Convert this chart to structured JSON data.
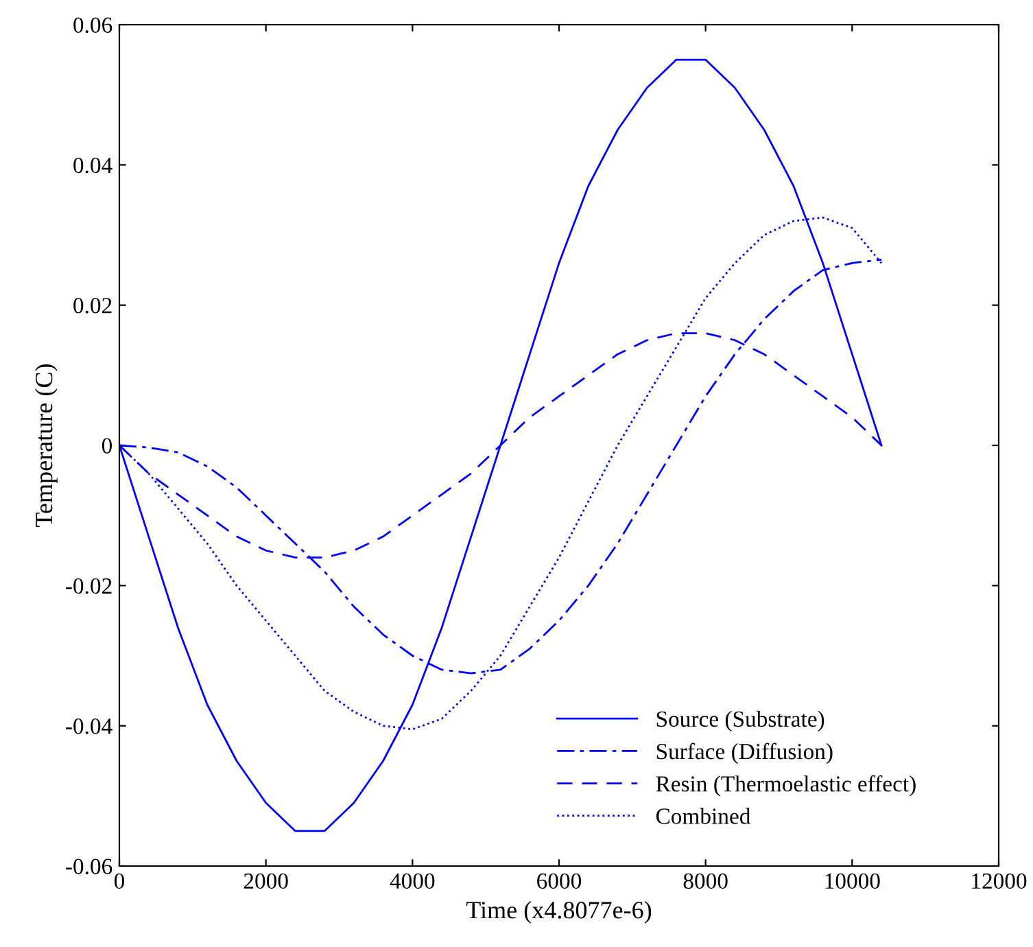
{
  "chart_data": {
    "type": "line",
    "xlabel": "Time (x4.8077e-6)",
    "ylabel": "Temperature (C)",
    "x": [
      0,
      400,
      800,
      1200,
      1600,
      2000,
      2400,
      2800,
      3200,
      3600,
      4000,
      4400,
      4800,
      5200,
      5600,
      6000,
      6400,
      6800,
      7200,
      7600,
      8000,
      8400,
      8800,
      9200,
      9600,
      10000,
      10400
    ],
    "series": [
      {
        "name": "Source (Substrate)",
        "color": "#0000ff",
        "line_style": "solid",
        "values": [
          0,
          -0.013,
          -0.026,
          -0.037,
          -0.045,
          -0.051,
          -0.055,
          -0.055,
          -0.051,
          -0.045,
          -0.037,
          -0.026,
          -0.013,
          0,
          0.013,
          0.026,
          0.037,
          0.045,
          0.051,
          0.055,
          0.055,
          0.051,
          0.045,
          0.037,
          0.026,
          0.013,
          0
        ]
      },
      {
        "name": "Surface (Diffusion)",
        "color": "#0000ff",
        "line_style": "dashdot",
        "values": [
          0,
          -0.0003,
          -0.001,
          -0.003,
          -0.006,
          -0.01,
          -0.014,
          -0.018,
          -0.023,
          -0.027,
          -0.03,
          -0.032,
          -0.0325,
          -0.032,
          -0.029,
          -0.025,
          -0.02,
          -0.014,
          -0.007,
          0,
          0.007,
          0.013,
          0.018,
          0.022,
          0.025,
          0.026,
          0.0265
        ]
      },
      {
        "name": "Resin (Thermoelastic effect)",
        "color": "#0000ff",
        "line_style": "dashed",
        "values": [
          0,
          -0.004,
          -0.007,
          -0.01,
          -0.013,
          -0.015,
          -0.016,
          -0.016,
          -0.015,
          -0.013,
          -0.01,
          -0.007,
          -0.004,
          0,
          0.004,
          0.007,
          0.01,
          0.013,
          0.015,
          0.016,
          0.016,
          0.015,
          0.013,
          0.01,
          0.007,
          0.004,
          0
        ]
      },
      {
        "name": "Combined",
        "color": "#0000ff",
        "line_style": "dotted",
        "values": [
          0,
          -0.004,
          -0.009,
          -0.014,
          -0.02,
          -0.025,
          -0.03,
          -0.035,
          -0.038,
          -0.04,
          -0.0405,
          -0.039,
          -0.035,
          -0.03,
          -0.023,
          -0.016,
          -0.008,
          0,
          0.007,
          0.014,
          0.021,
          0.026,
          0.03,
          0.032,
          0.0325,
          0.031,
          0.026
        ]
      }
    ],
    "xlim": [
      0,
      12000
    ],
    "xticks": [
      0,
      2000,
      4000,
      6000,
      8000,
      10000,
      12000
    ],
    "ylim": [
      -0.06,
      0.06
    ],
    "yticks": [
      -0.06,
      -0.04,
      -0.02,
      0,
      0.02,
      0.04,
      0.06
    ],
    "grid": false,
    "legend": "bottom right"
  }
}
